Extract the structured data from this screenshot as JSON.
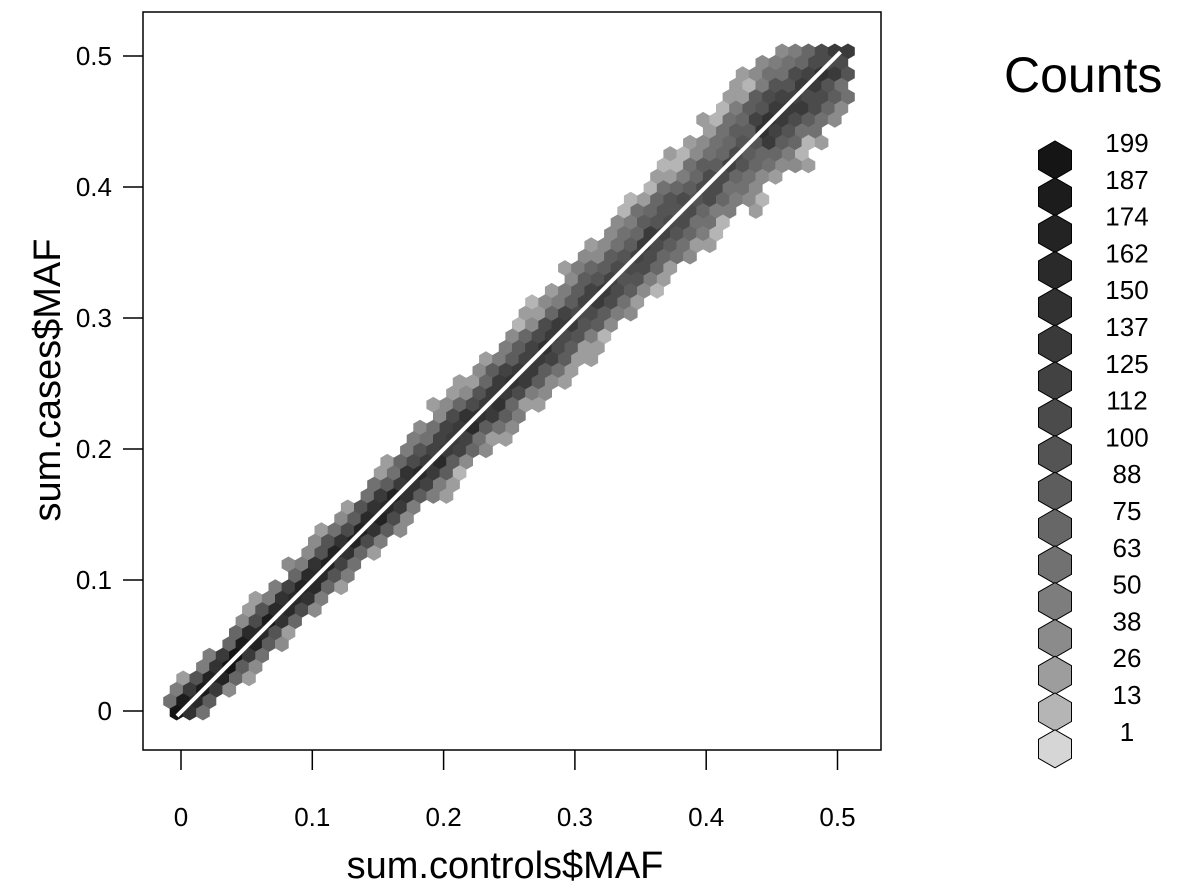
{
  "chart_data": {
    "type": "hexbin",
    "title": "",
    "xlabel": "sum.controls$MAF",
    "ylabel": "sum.cases$MAF",
    "xlim": [
      -0.03,
      0.535
    ],
    "ylim": [
      -0.03,
      0.535
    ],
    "x_ticks": [
      0,
      0.1,
      0.2,
      0.3,
      0.4,
      0.5
    ],
    "x_tick_labels": [
      "0",
      "0.1",
      "0.2",
      "0.3",
      "0.4",
      "0.5"
    ],
    "y_ticks": [
      0,
      0.1,
      0.2,
      0.3,
      0.4,
      0.5
    ],
    "y_tick_labels": [
      "0",
      "0.1",
      "0.2",
      "0.3",
      "0.4",
      "0.5"
    ],
    "grid": false,
    "reference_line": {
      "x": [
        0,
        0.5
      ],
      "y": [
        0,
        0.5
      ],
      "color": "#ffffff"
    },
    "legend": {
      "title": "Counts",
      "position": "right",
      "levels": [
        {
          "label": "199",
          "color": "#151515"
        },
        {
          "label": "187",
          "color": "#1c1c1c"
        },
        {
          "label": "174",
          "color": "#232323"
        },
        {
          "label": "162",
          "color": "#2a2a2a"
        },
        {
          "label": "150",
          "color": "#323232"
        },
        {
          "label": "137",
          "color": "#3a3a3a"
        },
        {
          "label": "125",
          "color": "#424242"
        },
        {
          "label": "112",
          "color": "#4b4b4b"
        },
        {
          "label": "100",
          "color": "#545454"
        },
        {
          "label": "88",
          "color": "#5d5d5d"
        },
        {
          "label": "75",
          "color": "#676767"
        },
        {
          "label": "63",
          "color": "#717171"
        },
        {
          "label": "50",
          "color": "#7d7d7d"
        },
        {
          "label": "38",
          "color": "#8b8b8b"
        },
        {
          "label": "26",
          "color": "#9d9d9d"
        },
        {
          "label": "13",
          "color": "#b5b5b5"
        },
        {
          "label": "1",
          "color": "#d6d6d6"
        }
      ]
    }
  }
}
